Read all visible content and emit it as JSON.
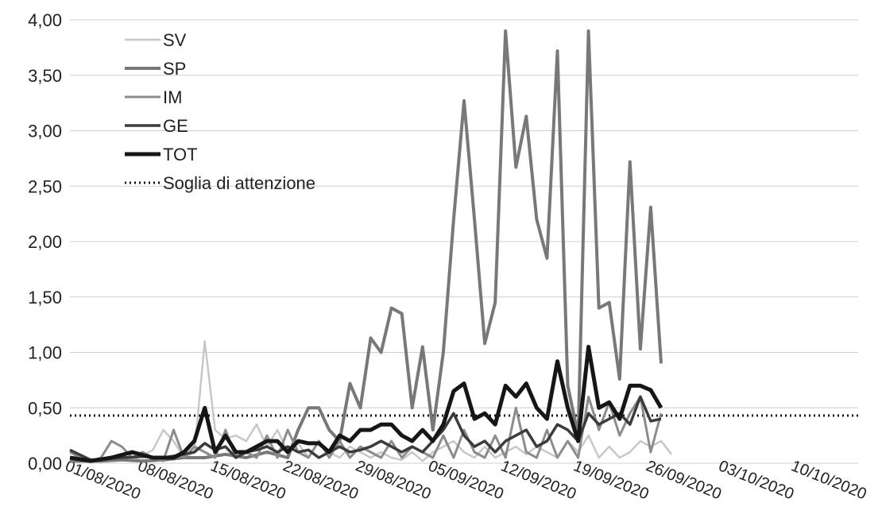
{
  "chart_data": {
    "type": "line",
    "ylim": [
      0,
      4
    ],
    "y_ticks": [
      "0,00",
      "0,50",
      "1,00",
      "1,50",
      "2,00",
      "2,50",
      "3,00",
      "3,50",
      "4,00"
    ],
    "y_tick_values": [
      0,
      0.5,
      1,
      1.5,
      2,
      2.5,
      3,
      3.5,
      4
    ],
    "x_range": [
      "2020-07-29",
      "2020-10-13"
    ],
    "x_ticks": [
      "01/08/2020",
      "08/08/2020",
      "15/08/2020",
      "22/08/2020",
      "29/08/2020",
      "05/09/2020",
      "12/09/2020",
      "19/09/2020",
      "26/09/2020",
      "03/10/2020",
      "10/10/2020"
    ],
    "x_tick_dates": [
      "2020-08-01",
      "2020-08-08",
      "2020-08-15",
      "2020-08-22",
      "2020-08-29",
      "2020-09-05",
      "2020-09-12",
      "2020-09-19",
      "2020-09-26",
      "2020-10-03",
      "2020-10-10"
    ],
    "grid": "horizontal",
    "legend_position": "top-left",
    "series": [
      {
        "name": "SV",
        "color": "#c8c8c8",
        "values": [
          [
            "2020-07-29",
            0.02
          ],
          [
            "2020-07-31",
            0.03
          ],
          [
            "2020-08-02",
            0.05
          ],
          [
            "2020-08-04",
            0.02
          ],
          [
            "2020-08-06",
            0.12
          ],
          [
            "2020-08-07",
            0.3
          ],
          [
            "2020-08-08",
            0.2
          ],
          [
            "2020-08-09",
            0.05
          ],
          [
            "2020-08-10",
            0.1
          ],
          [
            "2020-08-11",
            1.1
          ],
          [
            "2020-08-12",
            0.3
          ],
          [
            "2020-08-13",
            0.22
          ],
          [
            "2020-08-14",
            0.25
          ],
          [
            "2020-08-15",
            0.2
          ],
          [
            "2020-08-16",
            0.35
          ],
          [
            "2020-08-17",
            0.15
          ],
          [
            "2020-08-18",
            0.3
          ],
          [
            "2020-08-19",
            0.1
          ],
          [
            "2020-08-20",
            0.18
          ],
          [
            "2020-08-21",
            0.05
          ],
          [
            "2020-08-22",
            0.2
          ],
          [
            "2020-08-23",
            0.1
          ],
          [
            "2020-08-24",
            0.05
          ],
          [
            "2020-08-25",
            0.15
          ],
          [
            "2020-08-26",
            0.1
          ],
          [
            "2020-08-27",
            0.05
          ],
          [
            "2020-08-28",
            0.1
          ],
          [
            "2020-08-29",
            0.05
          ],
          [
            "2020-08-30",
            0.03
          ],
          [
            "2020-08-31",
            0.1
          ],
          [
            "2020-09-01",
            0.02
          ],
          [
            "2020-09-02",
            0.1
          ],
          [
            "2020-09-03",
            0.15
          ],
          [
            "2020-09-04",
            0.2
          ],
          [
            "2020-09-05",
            0.1
          ],
          [
            "2020-09-06",
            0.05
          ],
          [
            "2020-09-07",
            0.15
          ],
          [
            "2020-09-08",
            0.05
          ],
          [
            "2020-09-09",
            0.1
          ],
          [
            "2020-09-10",
            0.15
          ],
          [
            "2020-09-11",
            0.08
          ],
          [
            "2020-09-12",
            0.15
          ],
          [
            "2020-09-13",
            0.1
          ],
          [
            "2020-09-14",
            0.05
          ],
          [
            "2020-09-15",
            0.2
          ],
          [
            "2020-09-16",
            0.1
          ],
          [
            "2020-09-17",
            0.25
          ],
          [
            "2020-09-18",
            0.05
          ],
          [
            "2020-09-19",
            0.15
          ],
          [
            "2020-09-20",
            0.05
          ],
          [
            "2020-09-21",
            0.1
          ],
          [
            "2020-09-22",
            0.2
          ],
          [
            "2020-09-23",
            0.15
          ],
          [
            "2020-09-24",
            0.2
          ],
          [
            "2020-09-25",
            0.08
          ]
        ]
      },
      {
        "name": "SP",
        "color": "#787878",
        "values": [
          [
            "2020-07-29",
            0.02
          ],
          [
            "2020-08-01",
            0.02
          ],
          [
            "2020-08-03",
            0.03
          ],
          [
            "2020-08-05",
            0.02
          ],
          [
            "2020-08-07",
            0.03
          ],
          [
            "2020-08-09",
            0.05
          ],
          [
            "2020-08-11",
            0.05
          ],
          [
            "2020-08-13",
            0.08
          ],
          [
            "2020-08-15",
            0.05
          ],
          [
            "2020-08-17",
            0.1
          ],
          [
            "2020-08-19",
            0.05
          ],
          [
            "2020-08-20",
            0.3
          ],
          [
            "2020-08-21",
            0.5
          ],
          [
            "2020-08-22",
            0.5
          ],
          [
            "2020-08-23",
            0.3
          ],
          [
            "2020-08-24",
            0.2
          ],
          [
            "2020-08-25",
            0.72
          ],
          [
            "2020-08-26",
            0.5
          ],
          [
            "2020-08-27",
            1.13
          ],
          [
            "2020-08-28",
            1.0
          ],
          [
            "2020-08-29",
            1.4
          ],
          [
            "2020-08-30",
            1.35
          ],
          [
            "2020-08-31",
            0.5
          ],
          [
            "2020-09-01",
            1.05
          ],
          [
            "2020-09-02",
            0.3
          ],
          [
            "2020-09-03",
            1.0
          ],
          [
            "2020-09-04",
            2.2
          ],
          [
            "2020-09-05",
            3.27
          ],
          [
            "2020-09-06",
            2.2
          ],
          [
            "2020-09-07",
            1.08
          ],
          [
            "2020-09-08",
            1.45
          ],
          [
            "2020-09-09",
            3.9
          ],
          [
            "2020-09-10",
            2.67
          ],
          [
            "2020-09-11",
            3.13
          ],
          [
            "2020-09-12",
            2.2
          ],
          [
            "2020-09-13",
            1.85
          ],
          [
            "2020-09-14",
            3.72
          ],
          [
            "2020-09-15",
            0.7
          ],
          [
            "2020-09-16",
            0.25
          ],
          [
            "2020-09-17",
            3.9
          ],
          [
            "2020-09-18",
            1.4
          ],
          [
            "2020-09-19",
            1.45
          ],
          [
            "2020-09-20",
            0.76
          ],
          [
            "2020-09-21",
            2.72
          ],
          [
            "2020-09-22",
            1.03
          ],
          [
            "2020-09-23",
            2.31
          ],
          [
            "2020-09-24",
            0.9
          ]
        ]
      },
      {
        "name": "IM",
        "color": "#8c8c8c",
        "values": [
          [
            "2020-07-29",
            0.1
          ],
          [
            "2020-07-30",
            0.05
          ],
          [
            "2020-07-31",
            0.02
          ],
          [
            "2020-08-01",
            0.05
          ],
          [
            "2020-08-02",
            0.2
          ],
          [
            "2020-08-03",
            0.15
          ],
          [
            "2020-08-04",
            0.05
          ],
          [
            "2020-08-05",
            0.1
          ],
          [
            "2020-08-06",
            0.05
          ],
          [
            "2020-08-07",
            0.02
          ],
          [
            "2020-08-08",
            0.3
          ],
          [
            "2020-08-09",
            0.05
          ],
          [
            "2020-08-10",
            0.15
          ],
          [
            "2020-08-11",
            0.1
          ],
          [
            "2020-08-12",
            0.05
          ],
          [
            "2020-08-13",
            0.3
          ],
          [
            "2020-08-14",
            0.05
          ],
          [
            "2020-08-15",
            0.1
          ],
          [
            "2020-08-16",
            0.05
          ],
          [
            "2020-08-17",
            0.25
          ],
          [
            "2020-08-18",
            0.05
          ],
          [
            "2020-08-19",
            0.3
          ],
          [
            "2020-08-20",
            0.1
          ],
          [
            "2020-08-21",
            0.05
          ],
          [
            "2020-08-22",
            0.2
          ],
          [
            "2020-08-23",
            0.05
          ],
          [
            "2020-08-24",
            0.2
          ],
          [
            "2020-08-25",
            0.05
          ],
          [
            "2020-08-26",
            0.15
          ],
          [
            "2020-08-27",
            0.1
          ],
          [
            "2020-08-28",
            0.05
          ],
          [
            "2020-08-29",
            0.2
          ],
          [
            "2020-08-30",
            0.05
          ],
          [
            "2020-08-31",
            0.15
          ],
          [
            "2020-09-01",
            0.1
          ],
          [
            "2020-09-02",
            0.05
          ],
          [
            "2020-09-03",
            0.25
          ],
          [
            "2020-09-04",
            0.05
          ],
          [
            "2020-09-05",
            0.3
          ],
          [
            "2020-09-06",
            0.1
          ],
          [
            "2020-09-07",
            0.05
          ],
          [
            "2020-09-08",
            0.25
          ],
          [
            "2020-09-09",
            0.05
          ],
          [
            "2020-09-10",
            0.5
          ],
          [
            "2020-09-11",
            0.1
          ],
          [
            "2020-09-12",
            0.05
          ],
          [
            "2020-09-13",
            0.3
          ],
          [
            "2020-09-14",
            0.05
          ],
          [
            "2020-09-15",
            0.2
          ],
          [
            "2020-09-16",
            0.05
          ],
          [
            "2020-09-17",
            0.6
          ],
          [
            "2020-09-18",
            0.3
          ],
          [
            "2020-09-19",
            0.55
          ],
          [
            "2020-09-20",
            0.25
          ],
          [
            "2020-09-21",
            0.45
          ],
          [
            "2020-09-22",
            0.6
          ],
          [
            "2020-09-23",
            0.1
          ],
          [
            "2020-09-24",
            0.45
          ]
        ]
      },
      {
        "name": "GE",
        "color": "#3c3c3c",
        "values": [
          [
            "2020-07-29",
            0.12
          ],
          [
            "2020-07-31",
            0.03
          ],
          [
            "2020-08-03",
            0.05
          ],
          [
            "2020-08-05",
            0.06
          ],
          [
            "2020-08-07",
            0.05
          ],
          [
            "2020-08-09",
            0.08
          ],
          [
            "2020-08-10",
            0.1
          ],
          [
            "2020-08-11",
            0.18
          ],
          [
            "2020-08-12",
            0.12
          ],
          [
            "2020-08-13",
            0.15
          ],
          [
            "2020-08-14",
            0.05
          ],
          [
            "2020-08-15",
            0.1
          ],
          [
            "2020-08-16",
            0.12
          ],
          [
            "2020-08-17",
            0.15
          ],
          [
            "2020-08-18",
            0.1
          ],
          [
            "2020-08-19",
            0.15
          ],
          [
            "2020-08-20",
            0.1
          ],
          [
            "2020-08-21",
            0.12
          ],
          [
            "2020-08-22",
            0.05
          ],
          [
            "2020-08-23",
            0.1
          ],
          [
            "2020-08-24",
            0.15
          ],
          [
            "2020-08-25",
            0.1
          ],
          [
            "2020-08-26",
            0.12
          ],
          [
            "2020-08-27",
            0.15
          ],
          [
            "2020-08-28",
            0.2
          ],
          [
            "2020-08-29",
            0.15
          ],
          [
            "2020-08-30",
            0.1
          ],
          [
            "2020-08-31",
            0.15
          ],
          [
            "2020-09-01",
            0.1
          ],
          [
            "2020-09-02",
            0.2
          ],
          [
            "2020-09-03",
            0.3
          ],
          [
            "2020-09-04",
            0.45
          ],
          [
            "2020-09-05",
            0.25
          ],
          [
            "2020-09-06",
            0.15
          ],
          [
            "2020-09-07",
            0.2
          ],
          [
            "2020-09-08",
            0.1
          ],
          [
            "2020-09-09",
            0.2
          ],
          [
            "2020-09-10",
            0.25
          ],
          [
            "2020-09-11",
            0.3
          ],
          [
            "2020-09-12",
            0.15
          ],
          [
            "2020-09-13",
            0.2
          ],
          [
            "2020-09-14",
            0.35
          ],
          [
            "2020-09-15",
            0.3
          ],
          [
            "2020-09-16",
            0.2
          ],
          [
            "2020-09-17",
            0.45
          ],
          [
            "2020-09-18",
            0.35
          ],
          [
            "2020-09-19",
            0.4
          ],
          [
            "2020-09-20",
            0.45
          ],
          [
            "2020-09-21",
            0.35
          ],
          [
            "2020-09-22",
            0.6
          ],
          [
            "2020-09-23",
            0.38
          ],
          [
            "2020-09-24",
            0.4
          ]
        ]
      },
      {
        "name": "TOT",
        "color": "#161616",
        "values": [
          [
            "2020-07-29",
            0.05
          ],
          [
            "2020-07-31",
            0.02
          ],
          [
            "2020-08-02",
            0.05
          ],
          [
            "2020-08-04",
            0.1
          ],
          [
            "2020-08-06",
            0.05
          ],
          [
            "2020-08-08",
            0.05
          ],
          [
            "2020-08-09",
            0.1
          ],
          [
            "2020-08-10",
            0.2
          ],
          [
            "2020-08-11",
            0.5
          ],
          [
            "2020-08-12",
            0.1
          ],
          [
            "2020-08-13",
            0.25
          ],
          [
            "2020-08-14",
            0.1
          ],
          [
            "2020-08-15",
            0.1
          ],
          [
            "2020-08-16",
            0.15
          ],
          [
            "2020-08-17",
            0.2
          ],
          [
            "2020-08-18",
            0.2
          ],
          [
            "2020-08-19",
            0.1
          ],
          [
            "2020-08-20",
            0.2
          ],
          [
            "2020-08-21",
            0.18
          ],
          [
            "2020-08-22",
            0.18
          ],
          [
            "2020-08-23",
            0.1
          ],
          [
            "2020-08-24",
            0.25
          ],
          [
            "2020-08-25",
            0.2
          ],
          [
            "2020-08-26",
            0.3
          ],
          [
            "2020-08-27",
            0.3
          ],
          [
            "2020-08-28",
            0.35
          ],
          [
            "2020-08-29",
            0.35
          ],
          [
            "2020-08-30",
            0.25
          ],
          [
            "2020-08-31",
            0.2
          ],
          [
            "2020-09-01",
            0.3
          ],
          [
            "2020-09-02",
            0.2
          ],
          [
            "2020-09-03",
            0.35
          ],
          [
            "2020-09-04",
            0.65
          ],
          [
            "2020-09-05",
            0.72
          ],
          [
            "2020-09-06",
            0.4
          ],
          [
            "2020-09-07",
            0.45
          ],
          [
            "2020-09-08",
            0.35
          ],
          [
            "2020-09-09",
            0.7
          ],
          [
            "2020-09-10",
            0.6
          ],
          [
            "2020-09-11",
            0.72
          ],
          [
            "2020-09-12",
            0.5
          ],
          [
            "2020-09-13",
            0.4
          ],
          [
            "2020-09-14",
            0.92
          ],
          [
            "2020-09-15",
            0.5
          ],
          [
            "2020-09-16",
            0.2
          ],
          [
            "2020-09-17",
            1.05
          ],
          [
            "2020-09-18",
            0.5
          ],
          [
            "2020-09-19",
            0.55
          ],
          [
            "2020-09-20",
            0.4
          ],
          [
            "2020-09-21",
            0.7
          ],
          [
            "2020-09-22",
            0.7
          ],
          [
            "2020-09-23",
            0.66
          ],
          [
            "2020-09-24",
            0.5
          ]
        ]
      }
    ],
    "threshold": {
      "name": "Soglia di attenzione",
      "value": 0.43,
      "style": "dotted",
      "color": "#111111"
    }
  }
}
